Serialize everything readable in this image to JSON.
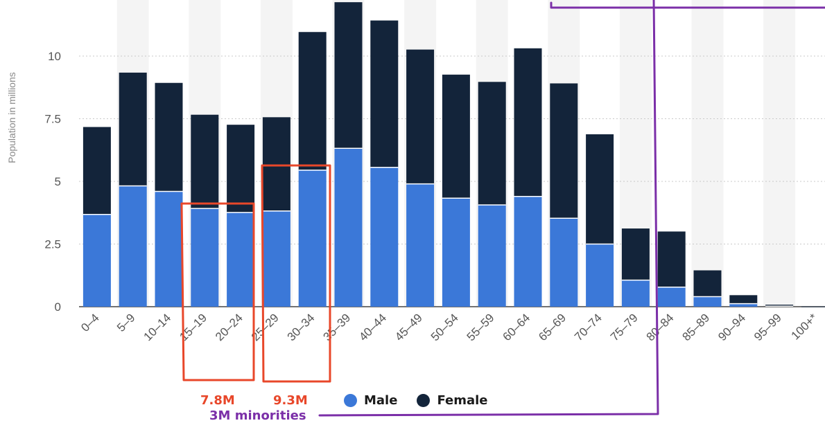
{
  "chart_data": {
    "type": "bar",
    "stacked": true,
    "ylabel": "Population in millions",
    "ylim": [
      0,
      12
    ],
    "yticks": [
      0,
      2.5,
      5,
      7.5,
      10
    ],
    "ytick_labels": [
      "0",
      "2.5",
      "5",
      "7.5",
      "10"
    ],
    "grid": true,
    "categories": [
      "0–4",
      "5–9",
      "10–14",
      "15–19",
      "20–24",
      "25–29",
      "30–34",
      "35–39",
      "40–44",
      "45–49",
      "50–54",
      "55–59",
      "60–64",
      "65–69",
      "70–74",
      "75–79",
      "80–84",
      "85–89",
      "90–94",
      "95–99",
      "100+*"
    ],
    "series": [
      {
        "name": "Male",
        "color": "#3b78d8",
        "values": [
          3.68,
          4.82,
          4.6,
          3.92,
          3.76,
          3.82,
          5.45,
          6.32,
          5.56,
          4.9,
          4.33,
          4.06,
          4.4,
          3.53,
          2.5,
          1.06,
          0.78,
          0.4,
          0.12,
          0.02,
          0.0
        ]
      },
      {
        "name": "Female",
        "color": "#13243a",
        "values": [
          3.49,
          4.52,
          4.33,
          3.74,
          3.5,
          3.74,
          5.51,
          5.83,
          5.86,
          5.36,
          4.93,
          4.91,
          5.91,
          5.38,
          4.38,
          2.06,
          2.22,
          1.05,
          0.34,
          0.06,
          0.01
        ]
      }
    ],
    "legend": {
      "position": "bottom",
      "items": [
        {
          "label": "Male",
          "color": "#3b78d8"
        },
        {
          "label": "Female",
          "color": "#13243a"
        }
      ]
    }
  },
  "annotations": {
    "box1_label": "7.8M",
    "box2_label": "9.3M",
    "minorities_label": "3M minorities",
    "box_color": "#e8472a",
    "minorities_color": "#7b2fa8"
  }
}
